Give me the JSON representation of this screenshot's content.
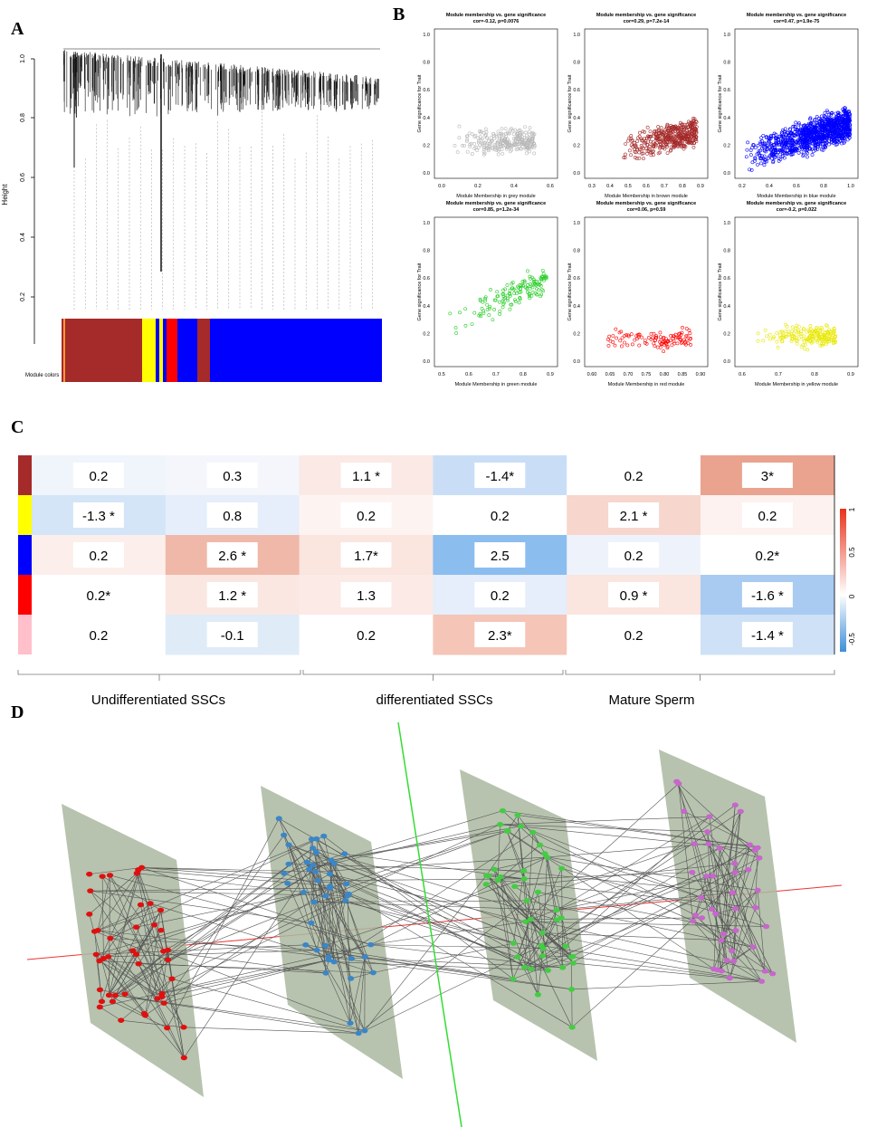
{
  "panels": {
    "A": {
      "label": "A",
      "y_axis_label": "Height",
      "yticks": [
        "1.0",
        "0.8",
        "0.6",
        "0.4",
        "0.2"
      ],
      "module_colors_label": "Module colors"
    },
    "B": {
      "label": "B",
      "plots": [
        {
          "title": "Module membership vs. gene significance",
          "subtitle": "cor=-0.12, p=0.0076",
          "xlabel": "Module Membership in grey module",
          "ylabel": "Gene significance for Trait",
          "color": "#b8b8b8",
          "xticks": [
            "0.0",
            "0.2",
            "0.4",
            "0.6"
          ],
          "yticks": [
            "0.0",
            "0.2",
            "0.4",
            "0.6",
            "0.8",
            "1.0"
          ]
        },
        {
          "title": "Module membership vs. gene significance",
          "subtitle": "cor=0.29, p=7.2e-14",
          "xlabel": "Module Membership in brown module",
          "ylabel": "Gene significance for Trait",
          "color": "#a52a2a",
          "xticks": [
            "0.3",
            "0.4",
            "0.5",
            "0.6",
            "0.7",
            "0.8",
            "0.9"
          ],
          "yticks": [
            "0.0",
            "0.2",
            "0.4",
            "0.6",
            "0.8",
            "1.0"
          ]
        },
        {
          "title": "Module membership vs. gene significance",
          "subtitle": "cor=0.47, p=1.9e-75",
          "xlabel": "Module Membership in blue module",
          "ylabel": "Gene significance for Trait",
          "color": "#0000ff",
          "xticks": [
            "0.2",
            "0.4",
            "0.6",
            "0.8",
            "1.0"
          ],
          "yticks": [
            "0.0",
            "0.2",
            "0.4",
            "0.6",
            "0.8",
            "1.0"
          ]
        },
        {
          "title": "Module membership vs. gene significance",
          "subtitle": "cor=0.85, p=1.2e-34",
          "xlabel": "Module Membership in green module",
          "ylabel": "Gene significance for Trait",
          "color": "#22cc22",
          "xticks": [
            "0.5",
            "0.6",
            "0.7",
            "0.8",
            "0.9"
          ],
          "yticks": [
            "0.0",
            "0.2",
            "0.4",
            "0.6",
            "0.8",
            "1.0"
          ]
        },
        {
          "title": "Module membership vs. gene significance",
          "subtitle": "cor=0.06, p=0.59",
          "xlabel": "Module Membership in red module",
          "ylabel": "Gene significance for Trait",
          "color": "#ff0000",
          "xticks": [
            "0.60",
            "0.65",
            "0.70",
            "0.75",
            "0.80",
            "0.85",
            "0.90"
          ],
          "yticks": [
            "0.0",
            "0.2",
            "0.4",
            "0.6",
            "0.8",
            "1.0"
          ]
        },
        {
          "title": "Module membership vs. gene significance",
          "subtitle": "cor=-0.2, p=0.022",
          "xlabel": "Module Membership in yellow module",
          "ylabel": "Gene significance for Trait",
          "color": "#e8e800",
          "xticks": [
            "0.6",
            "0.7",
            "0.8",
            "0.9"
          ],
          "yticks": [
            "0.0",
            "0.2",
            "0.4",
            "0.6",
            "0.8",
            "1.0"
          ]
        }
      ]
    },
    "C": {
      "label": "C",
      "module_colors": [
        "#a52a2a",
        "#ffff00",
        "#0000ff",
        "#ff0000",
        "#ffc0cb"
      ],
      "rows": [
        [
          {
            "text": "0.2",
            "color": "#f0f4fb"
          },
          {
            "text": "0.3",
            "color": "#f4f6fc"
          },
          {
            "text": "1.1 *",
            "color": "#fbe9e5"
          },
          {
            "text": "-1.4*",
            "color": "#c9def6"
          },
          {
            "text": "0.2",
            "color": "#ffffff"
          },
          {
            "text": "3*",
            "color": "#eaa38f"
          }
        ],
        [
          {
            "text": "-1.3 *",
            "color": "#d3e5f7"
          },
          {
            "text": "0.8",
            "color": "#e5eefa"
          },
          {
            "text": "0.2",
            "color": "#fdf4f2"
          },
          {
            "text": "0.2",
            "color": "#ffffff"
          },
          {
            "text": "2.1 *",
            "color": "#f7d6cd"
          },
          {
            "text": "0.2",
            "color": "#fdf2ef"
          }
        ],
        [
          {
            "text": "0.2",
            "color": "#fcefeb"
          },
          {
            "text": "2.6 *",
            "color": "#f0b8a8"
          },
          {
            "text": "1.7*",
            "color": "#fae5df"
          },
          {
            "text": "2.5",
            "color": "#8bbdef"
          },
          {
            "text": "0.2",
            "color": "#eef3fb"
          },
          {
            "text": "0.2*",
            "color": "#ffffff"
          }
        ],
        [
          {
            "text": "0.2*",
            "color": "#ffffff"
          },
          {
            "text": "1.2 *",
            "color": "#fbe7e2"
          },
          {
            "text": "1.3",
            "color": "#fbeae6"
          },
          {
            "text": "0.2",
            "color": "#e5eefa"
          },
          {
            "text": "0.9 *",
            "color": "#fbe5df"
          },
          {
            "text": "-1.6 *",
            "color": "#a9cbf2"
          }
        ],
        [
          {
            "text": "0.2",
            "color": "#ffffff"
          },
          {
            "text": "-0.1",
            "color": "#e0ebf8"
          },
          {
            "text": "0.2",
            "color": "#ffffff"
          },
          {
            "text": "2.3*",
            "color": "#f5c5b7"
          },
          {
            "text": "0.2",
            "color": "#ffffff"
          },
          {
            "text": "-1.4 *",
            "color": "#cfe1f6"
          }
        ]
      ],
      "legend_ticks": [
        "1",
        "0.5",
        "0",
        "-0.5"
      ],
      "groups": [
        "Undifferentiated  SSCs",
        "differentiated  SSCs",
        "Mature Sperm"
      ]
    },
    "D": {
      "label": "D",
      "layer_colors": [
        "#e01010",
        "#3a86c8",
        "#44cc44",
        "#c766cc"
      ]
    }
  }
}
